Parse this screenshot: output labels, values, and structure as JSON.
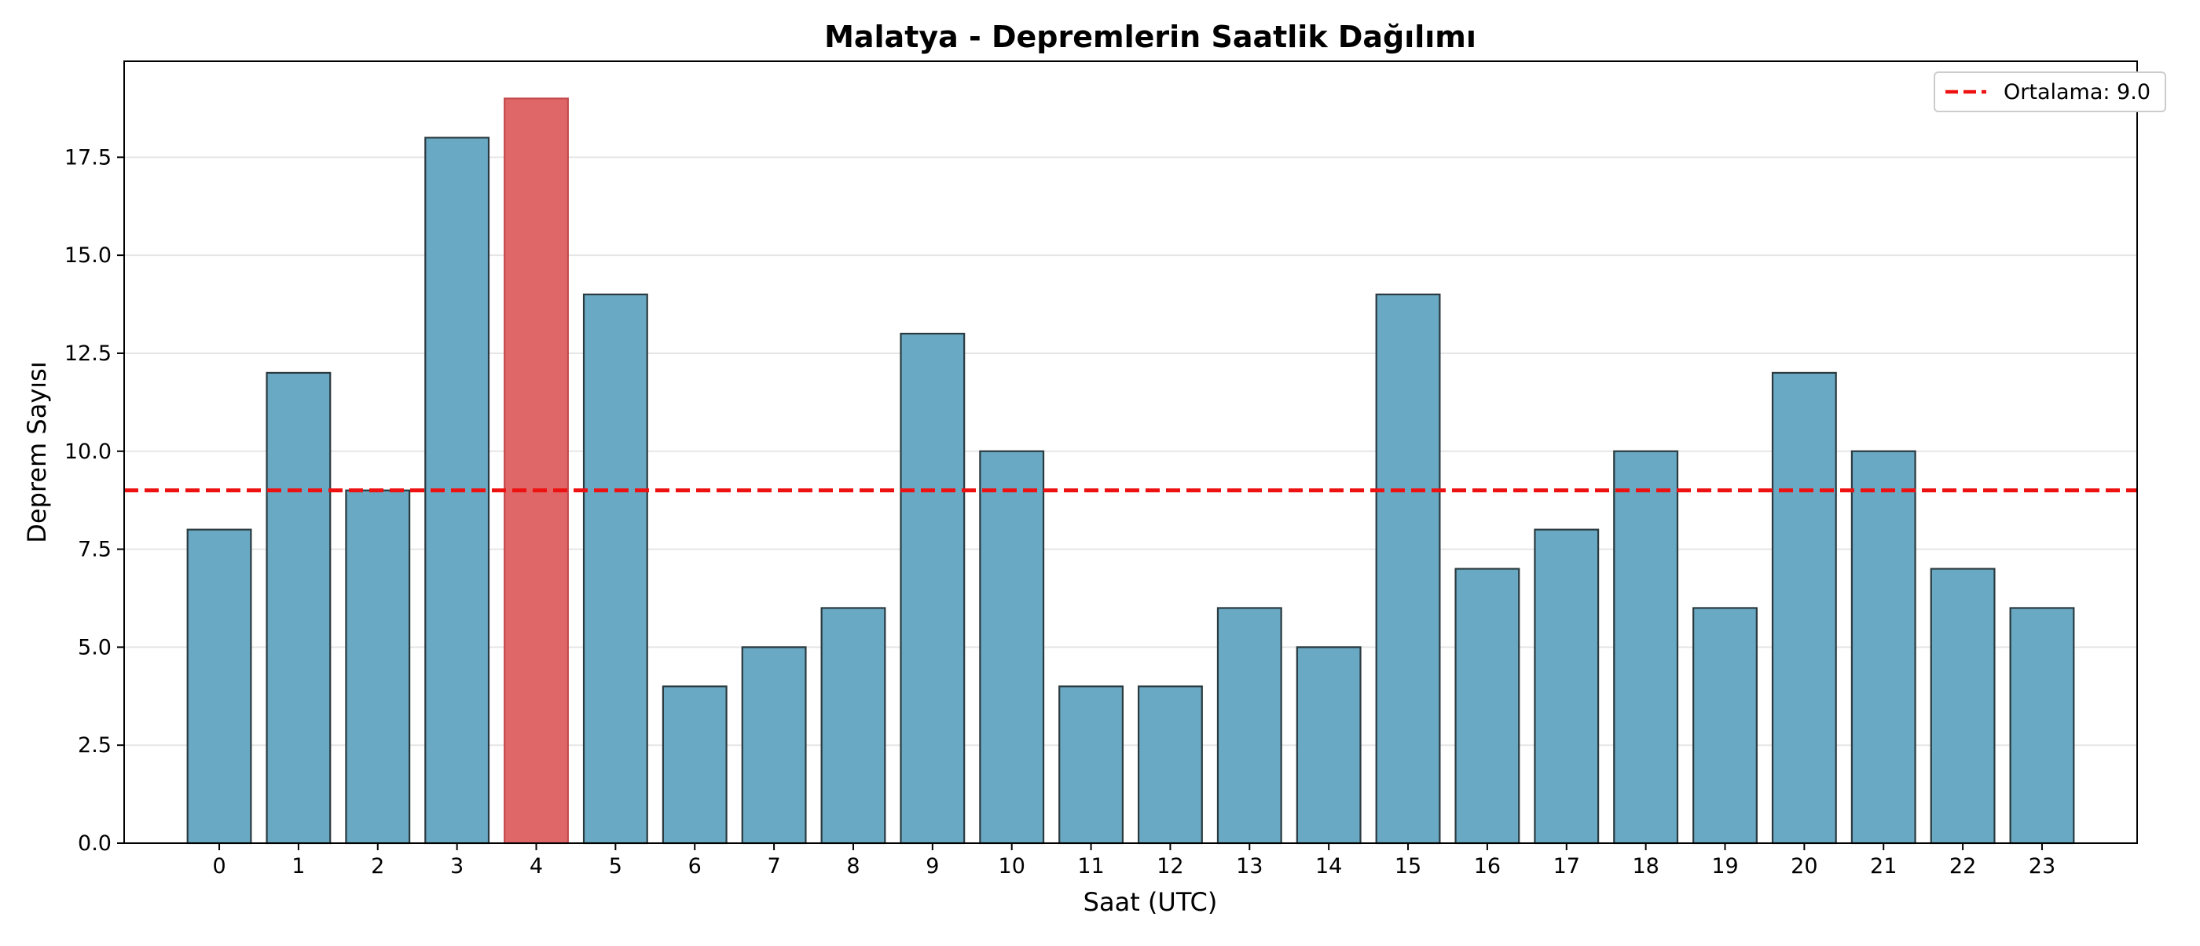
{
  "chart_data": {
    "type": "bar",
    "title": "Malatya - Depremlerin Saatlik Dağılımı",
    "xlabel": "Saat (UTC)",
    "ylabel": "Deprem Sayısı",
    "categories": [
      "0",
      "1",
      "2",
      "3",
      "4",
      "5",
      "6",
      "7",
      "8",
      "9",
      "10",
      "11",
      "12",
      "13",
      "14",
      "15",
      "16",
      "17",
      "18",
      "19",
      "20",
      "21",
      "22",
      "23"
    ],
    "values": [
      8,
      12,
      9,
      18,
      19,
      14,
      4,
      5,
      6,
      13,
      10,
      4,
      4,
      6,
      5,
      14,
      7,
      8,
      10,
      6,
      12,
      10,
      7,
      6
    ],
    "highlight_index": 4,
    "ylim": [
      0,
      19.95
    ],
    "yticks": [
      0,
      2.5,
      5,
      7.5,
      10,
      12.5,
      15,
      17.5
    ],
    "ytick_labels": [
      "0.0",
      "2.5",
      "5.0",
      "7.5",
      "10.0",
      "12.5",
      "15.0",
      "17.5"
    ],
    "reference_line": {
      "value": 9.0,
      "label": "Ortalama: 9.0",
      "style": "dashed",
      "color": "#ee1111"
    },
    "colors": {
      "bar": "#6aa9c4",
      "highlight": "#e06767",
      "bar_edge": "#2a3a3f",
      "grid": "#e6e6e6"
    },
    "grid": "y",
    "legend_position": "top-right"
  }
}
